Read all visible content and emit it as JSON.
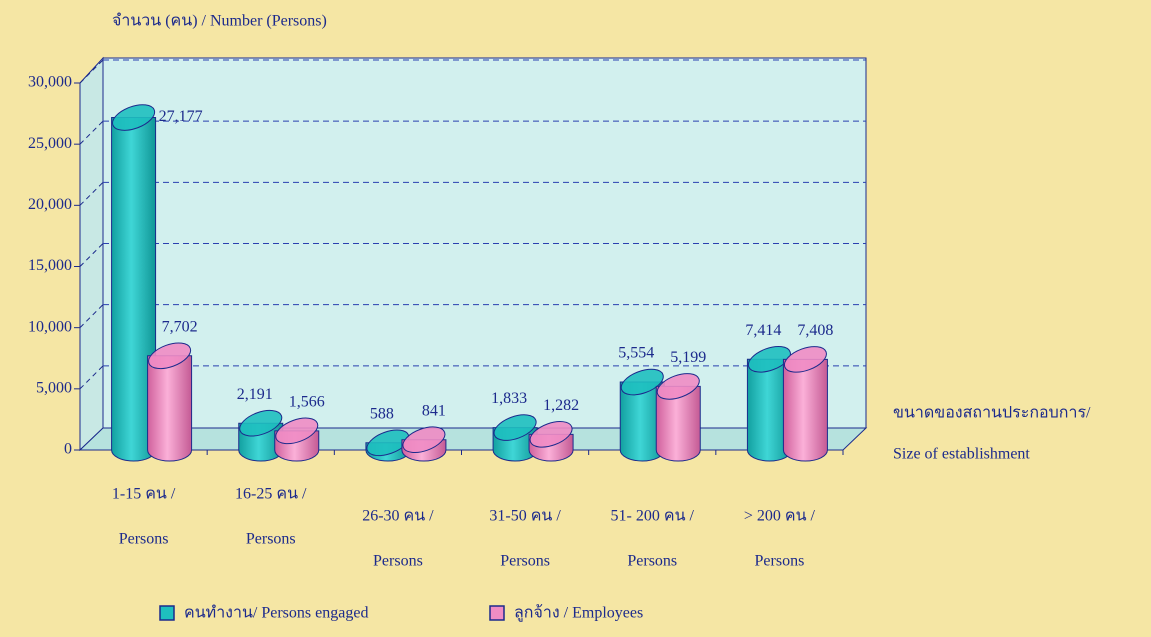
{
  "chart_data": {
    "type": "bar3d",
    "y_label": "จำนวน (คน) / Number (Persons)",
    "x_label": [
      "ขนาดของสถานประกอบการ/",
      "Size of establishment"
    ],
    "categories": [
      [
        "1-15 คน /",
        "Persons"
      ],
      [
        "16-25 คน /",
        "Persons"
      ],
      [
        "26-30 คน /",
        "Persons"
      ],
      [
        "31-50 คน /",
        "Persons"
      ],
      [
        "51- 200 คน /",
        "Persons"
      ],
      [
        "> 200 คน /",
        "Persons"
      ]
    ],
    "series": [
      {
        "name": "คนทำงาน/ Persons engaged",
        "color": "#1ebfbf",
        "values": [
          27177,
          2191,
          588,
          1833,
          5554,
          7414
        ],
        "value_labels": [
          "27,177",
          "2,191",
          "588",
          "1,833",
          "5,554",
          "7,414"
        ]
      },
      {
        "name": "ลูกจ้าง / Employees",
        "color": "#f08cc4",
        "values": [
          7702,
          1566,
          841,
          1282,
          5199,
          7408
        ],
        "value_labels": [
          "7,702",
          "1,566",
          "841",
          "1,282",
          "5,199",
          "7,408"
        ]
      }
    ],
    "ylim": [
      0,
      30000
    ],
    "yticks": [
      0,
      {
        "value": 5000,
        "label": "5,000"
      },
      {
        "value": 10000,
        "label": "10,000"
      },
      {
        "value": 15000,
        "label": "15,000"
      },
      {
        "value": 20000,
        "label": "20,000"
      },
      {
        "value": 25000,
        "label": "25,000"
      },
      {
        "value": 30000,
        "label": "30,000"
      }
    ],
    "grid": true
  }
}
